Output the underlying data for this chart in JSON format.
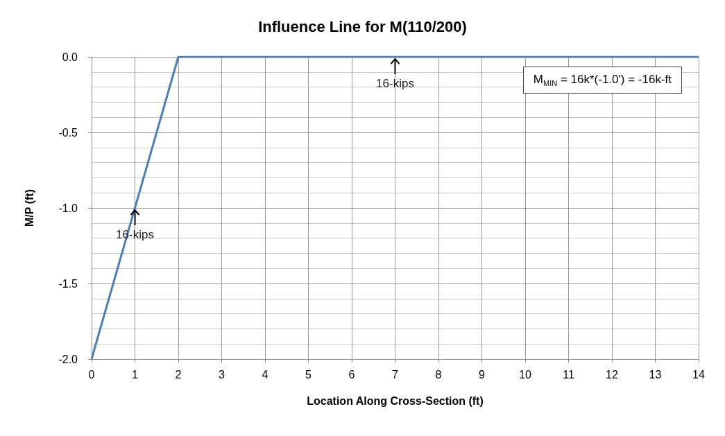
{
  "chart_data": {
    "type": "line",
    "title": "Influence Line for M(110/200)",
    "xlabel": "Location Along Cross-Section (ft)",
    "ylabel": "M/P (ft)",
    "x": [
      0,
      2,
      14
    ],
    "series": [
      {
        "color": "#4a7ebb",
        "values": [
          -2,
          0,
          0
        ]
      }
    ],
    "xlim": [
      0,
      14
    ],
    "xticks": [
      0,
      1,
      2,
      3,
      4,
      5,
      6,
      7,
      8,
      9,
      10,
      11,
      12,
      13,
      14
    ],
    "ylim": [
      -2,
      0
    ],
    "yticks": [
      {
        "value": -2,
        "label": "-2.0"
      },
      {
        "value": -1.5,
        "label": "-1.5"
      },
      {
        "value": -1,
        "label": "-1.0"
      },
      {
        "value": -0.5,
        "label": "-0.5"
      },
      {
        "value": 0,
        "label": "0.0"
      }
    ],
    "grid": true,
    "marker": "none",
    "line_style": "solid",
    "annotations": [
      {
        "text": "16-kips",
        "x": 7,
        "y": 0
      },
      {
        "text": "16-kips",
        "x": 1,
        "y": -1
      },
      "M$_{MIN}$ = 16k*(-1.0') = -16k-ft"
    ]
  }
}
